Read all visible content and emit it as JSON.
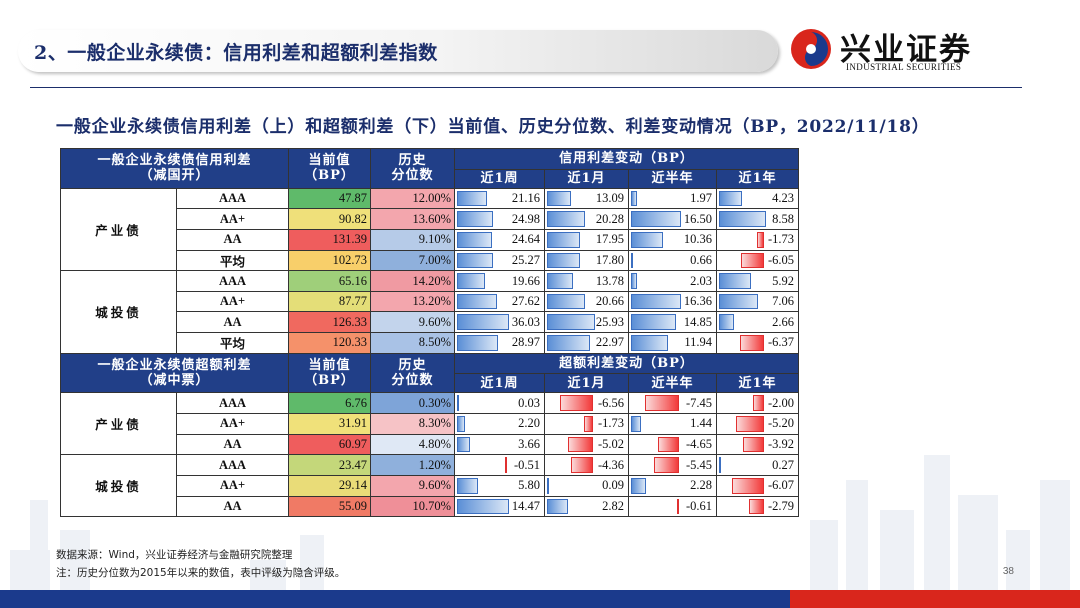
{
  "header": {
    "title": "2、一般企业永续债：信用利差和超额利差指数",
    "logo_cn": "兴业证券",
    "logo_en": "INDUSTRIAL SECURITIES"
  },
  "subtitle": "一般企业永续债信用利差（上）和超额利差（下）当前值、历史分位数、利差变动情况（BP，2022/11/18）",
  "credit_table": {
    "header": {
      "name": "一般企业永续债信用利差",
      "name_sub": "（减国开）",
      "current": "当前值",
      "current_unit": "（BP）",
      "pct": "历史",
      "pct_sub": "分位数",
      "change_group": "信用利差变动（BP）",
      "periods": [
        "近1周",
        "近1月",
        "近半年",
        "近1年"
      ]
    },
    "groups": [
      {
        "name": "产业债",
        "rows": [
          {
            "rating": "AAA",
            "current": "47.87",
            "current_color": "#5fba6a",
            "pct": "12.00%",
            "pct_color": "#f3a6ad",
            "changes": [
              "21.16",
              "13.09",
              "1.97",
              "4.23"
            ]
          },
          {
            "rating": "AA+",
            "current": "90.82",
            "current_color": "#efe07a",
            "pct": "13.60%",
            "pct_color": "#f3a6ad",
            "changes": [
              "24.98",
              "20.28",
              "16.50",
              "8.58"
            ]
          },
          {
            "rating": "AA",
            "current": "131.39",
            "current_color": "#ef5d5d",
            "pct": "9.10%",
            "pct_color": "#b6cbe8",
            "changes": [
              "24.64",
              "17.95",
              "10.36",
              "-1.73"
            ]
          },
          {
            "rating": "平均",
            "current": "102.73",
            "current_color": "#f8cf6a",
            "pct": "7.00%",
            "pct_color": "#8fb0dc",
            "changes": [
              "25.27",
              "17.80",
              "0.66",
              "-6.05"
            ]
          }
        ]
      },
      {
        "name": "城投债",
        "rows": [
          {
            "rating": "AAA",
            "current": "65.16",
            "current_color": "#9fcf7a",
            "pct": "14.20%",
            "pct_color": "#f09aa2",
            "changes": [
              "19.66",
              "13.78",
              "2.03",
              "5.92"
            ]
          },
          {
            "rating": "AA+",
            "current": "87.77",
            "current_color": "#e4de78",
            "pct": "13.20%",
            "pct_color": "#f3a6ad",
            "changes": [
              "27.62",
              "20.66",
              "16.36",
              "7.06"
            ]
          },
          {
            "rating": "AA",
            "current": "126.33",
            "current_color": "#f0695f",
            "pct": "9.60%",
            "pct_color": "#c3d4ec",
            "changes": [
              "36.03",
              "25.93",
              "14.85",
              "2.66"
            ]
          },
          {
            "rating": "平均",
            "current": "120.33",
            "current_color": "#f5916a",
            "pct": "8.50%",
            "pct_color": "#a9c2e6",
            "changes": [
              "28.97",
              "22.97",
              "11.94",
              "-6.37"
            ]
          }
        ]
      }
    ]
  },
  "excess_table": {
    "header": {
      "name": "一般企业永续债超额利差",
      "name_sub": "（减中票）",
      "current": "当前值",
      "current_unit": "（BP）",
      "pct": "历史",
      "pct_sub": "分位数",
      "change_group": "超额利差变动（BP）",
      "periods": [
        "近1周",
        "近1月",
        "近半年",
        "近1年"
      ]
    },
    "groups": [
      {
        "name": "产业债",
        "rows": [
          {
            "rating": "AAA",
            "current": "6.76",
            "current_color": "#5fba6a",
            "pct": "0.30%",
            "pct_color": "#7ea4d8",
            "changes": [
              "0.03",
              "-6.56",
              "-7.45",
              "-2.00"
            ]
          },
          {
            "rating": "AA+",
            "current": "31.91",
            "current_color": "#f0e17a",
            "pct": "8.30%",
            "pct_color": "#f6c3c6",
            "changes": [
              "2.20",
              "-1.73",
              "1.44",
              "-5.20"
            ]
          },
          {
            "rating": "AA",
            "current": "60.97",
            "current_color": "#ef5d5d",
            "pct": "4.80%",
            "pct_color": "#dfe8f5",
            "changes": [
              "3.66",
              "-5.02",
              "-4.65",
              "-3.92"
            ]
          }
        ]
      },
      {
        "name": "城投债",
        "rows": [
          {
            "rating": "AAA",
            "current": "23.47",
            "current_color": "#c4d77a",
            "pct": "1.20%",
            "pct_color": "#8fb0dc",
            "changes": [
              "-0.51",
              "-4.36",
              "-5.45",
              "0.27"
            ]
          },
          {
            "rating": "AA+",
            "current": "29.14",
            "current_color": "#e9dc78",
            "pct": "9.60%",
            "pct_color": "#f3a6ad",
            "changes": [
              "5.80",
              "0.09",
              "2.28",
              "-6.07"
            ]
          },
          {
            "rating": "AA",
            "current": "55.09",
            "current_color": "#f07a65",
            "pct": "10.70%",
            "pct_color": "#ef8f98",
            "changes": [
              "14.47",
              "2.82",
              "-0.61",
              "-2.79"
            ]
          }
        ]
      }
    ]
  },
  "footer": {
    "source": "数据来源：Wind，兴业证券经济与金融研究院整理",
    "note": "注：历史分位数为2015年以来的数值，表中评级为隐含评级。",
    "page": "38"
  },
  "colors": {
    "brand_blue": "#1b2e6b",
    "header_fill": "#213f88",
    "bar_positive": "#5b8fd6",
    "bar_negative": "#f23a3a",
    "bottom_blue": "#1b3a8c",
    "bottom_red": "#d9261c"
  }
}
